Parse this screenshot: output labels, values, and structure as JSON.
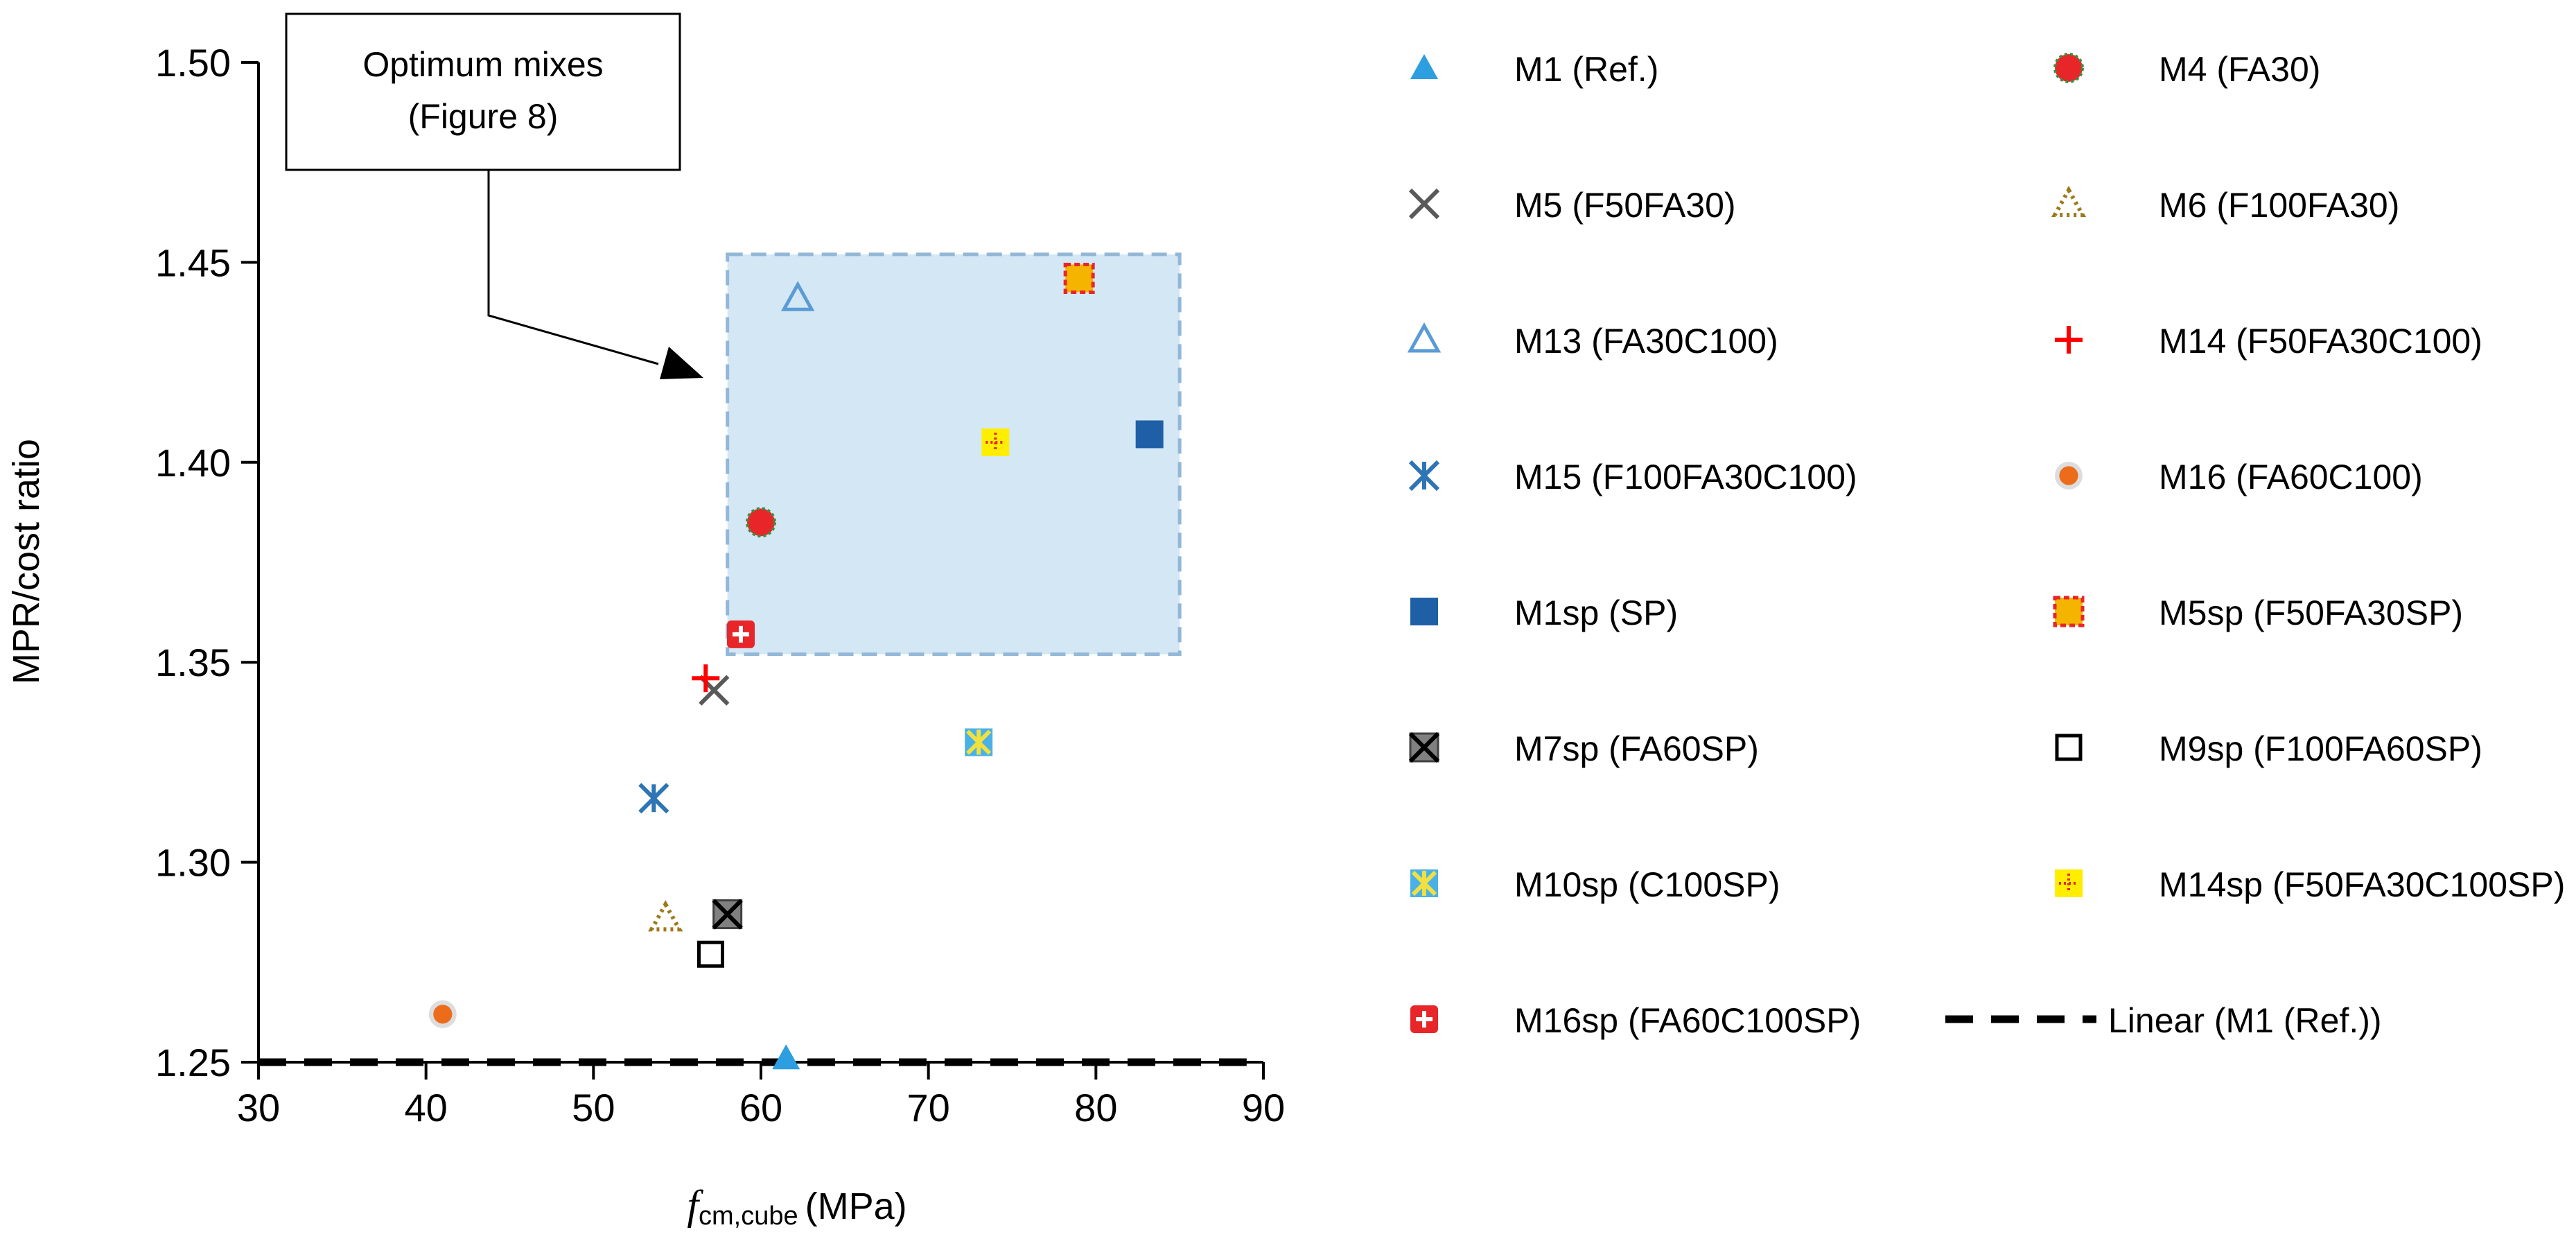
{
  "chart_data": {
    "type": "scatter",
    "title": "",
    "xlabel": {
      "italic": "f",
      "sub": "cm,cube",
      "unit": "(MPa)"
    },
    "ylabel": "MPR/cost ratio",
    "xlim": [
      30,
      90
    ],
    "ylim": [
      1.25,
      1.5
    ],
    "x_ticks": [
      "30",
      "40",
      "50",
      "60",
      "70",
      "80",
      "90"
    ],
    "y_ticks": [
      "1.25",
      "1.30",
      "1.35",
      "1.40",
      "1.45",
      "1.50"
    ],
    "grid": false,
    "legend_position": "right",
    "annotation": {
      "lines": [
        "Optimum mixes",
        "(Figure 8)"
      ],
      "region_x": [
        58,
        85
      ],
      "region_y": [
        1.352,
        1.452
      ],
      "region_color": "#d4e7f5",
      "region_border": "#93b7d6"
    },
    "series": [
      {
        "name": "M1 (Ref.)",
        "x": 61.5,
        "y": 1.251,
        "marker": "triangle-filled",
        "color": "#2d9ee0"
      },
      {
        "name": "M4 (FA30)",
        "x": 60.0,
        "y": 1.385,
        "marker": "circle-red-green",
        "color": "#e8262a"
      },
      {
        "name": "M5 (F50FA30)",
        "x": 57.2,
        "y": 1.343,
        "marker": "x",
        "color": "#595959"
      },
      {
        "name": "M6 (F100FA30)",
        "x": 54.3,
        "y": 1.286,
        "marker": "triangle-dotted",
        "color": "#9c7a1c"
      },
      {
        "name": "M13 (FA30C100)",
        "x": 62.2,
        "y": 1.441,
        "marker": "triangle-open",
        "color": "#5b9bd5"
      },
      {
        "name": "M14 (F50FA30C100)",
        "x": 56.7,
        "y": 1.346,
        "marker": "plus",
        "color": "#ff0000"
      },
      {
        "name": "M15 (F100FA30C100)",
        "x": 53.6,
        "y": 1.316,
        "marker": "star",
        "color": "#2e75b6"
      },
      {
        "name": "M16 (FA60C100)",
        "x": 41.0,
        "y": 1.262,
        "marker": "circle-orange",
        "color": "#ed6c1c"
      },
      {
        "name": "M1sp (SP)",
        "x": 83.2,
        "y": 1.407,
        "marker": "square-filled",
        "color": "#1f5fa6"
      },
      {
        "name": "M5sp (F50FA30SP)",
        "x": 79.0,
        "y": 1.446,
        "marker": "square-red-dash",
        "color": "#f5b400"
      },
      {
        "name": "M7sp (FA60SP)",
        "x": 58.0,
        "y": 1.287,
        "marker": "square-x",
        "color": "#808080"
      },
      {
        "name": "M9sp (F100FA60SP)",
        "x": 57.0,
        "y": 1.277,
        "marker": "square-open",
        "color": "#000000"
      },
      {
        "name": "M10sp (C100SP)",
        "x": 73.0,
        "y": 1.33,
        "marker": "square-star",
        "color": "#4ab1e8"
      },
      {
        "name": "M14sp (F50FA30C100SP)",
        "x": 74.0,
        "y": 1.405,
        "marker": "square-yellow-dot",
        "color": "#ffee00"
      },
      {
        "name": "M16sp (FA60C100SP)",
        "x": 58.8,
        "y": 1.357,
        "marker": "square-red-plus",
        "color": "#e8262a"
      }
    ],
    "trendline": {
      "name": "Linear (M1 (Ref.))",
      "x": [
        30,
        89
      ],
      "y": [
        1.25,
        1.25
      ],
      "style": "dashed",
      "color": "#000000"
    }
  }
}
